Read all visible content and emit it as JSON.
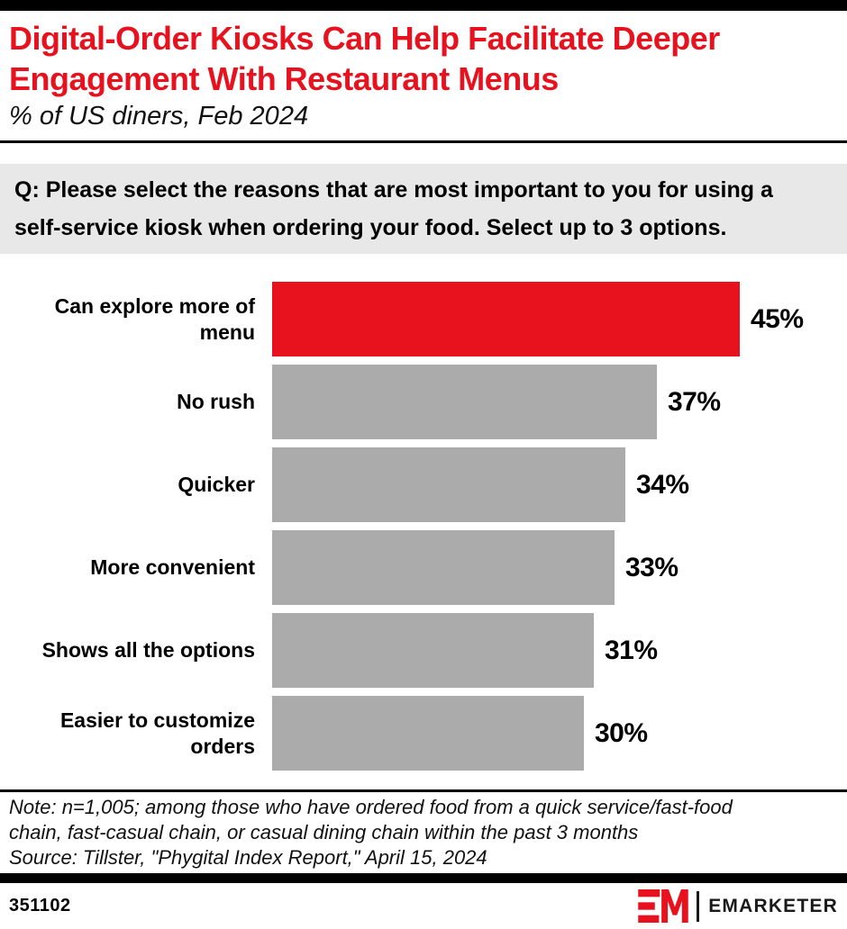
{
  "colors": {
    "accent_red": "#E8121F",
    "bar_gray": "#ABABAB",
    "question_bg": "#E8E8E8",
    "bar_black": "#000000"
  },
  "header": {
    "title": "Digital-Order Kiosks Can Help Facilitate Deeper Engagement With Restaurant Menus",
    "title_lines": [
      "Digital-Order Kiosks Can Help Facilitate Deeper",
      "Engagement With Restaurant Menus"
    ],
    "subtitle": "% of US diners, Feb 2024"
  },
  "question": {
    "text": "Q: Please select the reasons that are most important to you for using a self-service kiosk when ordering your food. Select up to 3 options.",
    "lines": [
      "Q: Please select the reasons that are most important to you for using a",
      "self-service kiosk when ordering your food. Select up to 3 options."
    ]
  },
  "chart_data": {
    "type": "bar",
    "orientation": "horizontal",
    "title": "Digital-Order Kiosks Can Help Facilitate Deeper Engagement With Restaurant Menus",
    "subtitle": "% of US diners, Feb 2024",
    "unit": "%",
    "xlim": [
      0,
      50
    ],
    "grid": false,
    "legend": false,
    "categories": [
      "Can explore more of menu",
      "No rush",
      "Quicker",
      "More convenient",
      "Shows all the options",
      "Easier to customize orders"
    ],
    "category_lines": [
      [
        "Can explore more of",
        "menu"
      ],
      [
        "No rush"
      ],
      [
        "Quicker"
      ],
      [
        "More convenient"
      ],
      [
        "Shows all the options"
      ],
      [
        "Easier to customize",
        "orders"
      ]
    ],
    "values": [
      45,
      37,
      34,
      33,
      31,
      30
    ],
    "value_labels": [
      "45%",
      "37%",
      "34%",
      "33%",
      "31%",
      "30%"
    ],
    "bar_colors": [
      "#E8121F",
      "#ABABAB",
      "#ABABAB",
      "#ABABAB",
      "#ABABAB",
      "#ABABAB"
    ]
  },
  "footer": {
    "note_lines": [
      "Note: n=1,005; among those who have ordered food from a quick service/fast-food",
      "chain, fast-casual chain, or casual dining chain within the past 3 months"
    ],
    "source": "Source: Tillster, \"Phygital Index Report,\" April 15, 2024",
    "chart_id": "351102",
    "brand": "EMARKETER"
  }
}
